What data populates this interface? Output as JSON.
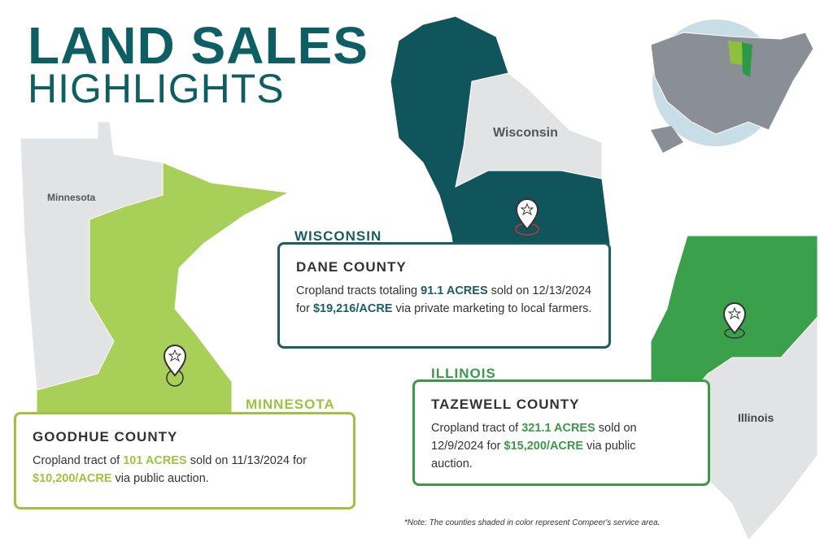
{
  "header": {
    "title": "LAND SALES",
    "subtitle": "HIGHLIGHTS"
  },
  "maps": {
    "minnesota": "Minnesota",
    "wisconsin": "Wisconsin",
    "illinois": "Illinois"
  },
  "cards": [
    {
      "state": "WISCONSIN",
      "county": "DANE COUNTY",
      "color": "#1a5e63",
      "body": [
        {
          "text": "Cropland tracts totaling "
        },
        {
          "text": "91.1 ACRES",
          "em": true
        },
        {
          "text": " sold on 12/13/2024 for "
        },
        {
          "text": "$19,216/ACRE",
          "em": true
        },
        {
          "text": " via private marketing to local farmers."
        }
      ]
    },
    {
      "state": "MINNESOTA",
      "county": "GOODHUE COUNTY",
      "color": "#9dc43c",
      "body": [
        {
          "text": "Cropland tract of "
        },
        {
          "text": "101 ACRES",
          "em": true
        },
        {
          "text": " sold on 11/13/2024 for "
        },
        {
          "text": "$10,200/ACRE",
          "em": true
        },
        {
          "text": " via public auction."
        }
      ]
    },
    {
      "state": "ILLINOIS",
      "county": "TAZEWELL COUNTY",
      "color": "#3a9a4a",
      "body": [
        {
          "text": "Cropland tract of "
        },
        {
          "text": "321.1 ACRES",
          "em": true
        },
        {
          "text": " sold on 12/9/2024 for "
        },
        {
          "text": "$15,200/ACRE",
          "em": true
        },
        {
          "text": " via public auction."
        }
      ]
    }
  ],
  "note": "*Note: The counties shaded in color represent Compeer's service area."
}
